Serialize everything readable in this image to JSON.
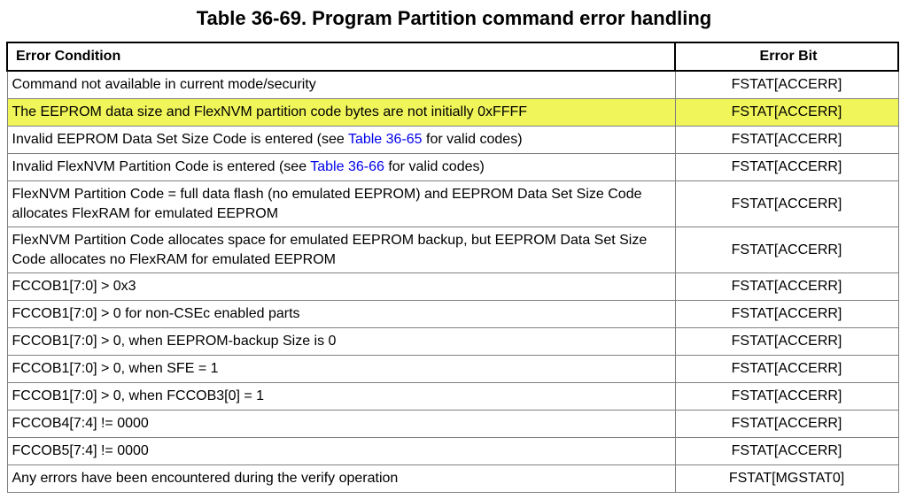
{
  "title": "Table 36-69.   Program Partition command error handling",
  "headers": {
    "condition": "Error Condition",
    "bit": "Error Bit"
  },
  "highlight_color": "#f0f55a",
  "rows": [
    {
      "condition": "Command not available in current mode/security",
      "bit": "FSTAT[ACCERR]"
    },
    {
      "condition": "The EEPROM data size and FlexNVM partition code bytes are not initially 0xFFFF",
      "bit": "FSTAT[ACCERR]",
      "highlighted": true
    },
    {
      "pre": "Invalid EEPROM Data Set Size Code is entered (see ",
      "link": "Table 36-65",
      "post": " for valid codes)",
      "bit": "FSTAT[ACCERR]"
    },
    {
      "pre": "Invalid FlexNVM Partition Code is entered (see ",
      "link": "Table 36-66",
      "post": " for valid codes)",
      "bit": "FSTAT[ACCERR]"
    },
    {
      "condition": "FlexNVM Partition Code = full data flash (no emulated EEPROM) and EEPROM Data Set Size Code allocates FlexRAM for emulated EEPROM",
      "bit": "FSTAT[ACCERR]"
    },
    {
      "condition": "FlexNVM Partition Code allocates space for emulated EEPROM backup, but EEPROM Data Set Size Code allocates no FlexRAM for emulated EEPROM",
      "bit": "FSTAT[ACCERR]"
    },
    {
      "condition": "FCCOB1[7:0] > 0x3",
      "bit": "FSTAT[ACCERR]"
    },
    {
      "condition": "FCCOB1[7:0] > 0 for non-CSEc enabled parts",
      "bit": "FSTAT[ACCERR]"
    },
    {
      "condition": "FCCOB1[7:0] > 0, when EEPROM-backup Size is 0",
      "bit": "FSTAT[ACCERR]"
    },
    {
      "condition": "FCCOB1[7:0] > 0, when SFE = 1",
      "bit": "FSTAT[ACCERR]"
    },
    {
      "condition": "FCCOB1[7:0] > 0, when FCCOB3[0] = 1",
      "bit": "FSTAT[ACCERR]"
    },
    {
      "condition": "FCCOB4[7:4] != 0000",
      "bit": "FSTAT[ACCERR]"
    },
    {
      "condition": "FCCOB5[7:4] != 0000",
      "bit": "FSTAT[ACCERR]"
    },
    {
      "condition": "Any errors have been encountered during the verify operation",
      "bit": "FSTAT[MGSTAT0]"
    }
  ]
}
